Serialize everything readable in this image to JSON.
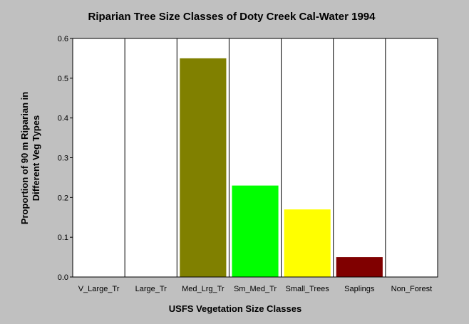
{
  "chart_data": {
    "type": "bar",
    "title": "Riparian Tree Size Classes of Doty Creek Cal-Water 1994",
    "xlabel": "USFS Vegetation Size Classes",
    "ylabel_lines": [
      "Proportion of 90 m Riparian in",
      "Different Veg Types"
    ],
    "categories": [
      "V_Large_Tr",
      "Large_Tr",
      "Med_Lrg_Tr",
      "Sm_Med_Tr",
      "Small_Trees",
      "Saplings",
      "Non_Forest"
    ],
    "values": [
      0,
      0,
      0.55,
      0.23,
      0.17,
      0.05,
      0
    ],
    "colors": [
      "#808000",
      "#808000",
      "#808000",
      "#00ff00",
      "#ffff00",
      "#800000",
      "#808080"
    ],
    "ylim": [
      0,
      0.6
    ],
    "yticks": [
      0.0,
      0.1,
      0.2,
      0.3,
      0.4,
      0.5,
      0.6
    ],
    "ytick_labels": [
      "0.0",
      "0.1",
      "0.2",
      "0.3",
      "0.4",
      "0.5",
      "0.6"
    ],
    "grid": "vertical",
    "legend": "none",
    "plot_background": "#ffffff",
    "page_background": "#c0c0c0"
  }
}
